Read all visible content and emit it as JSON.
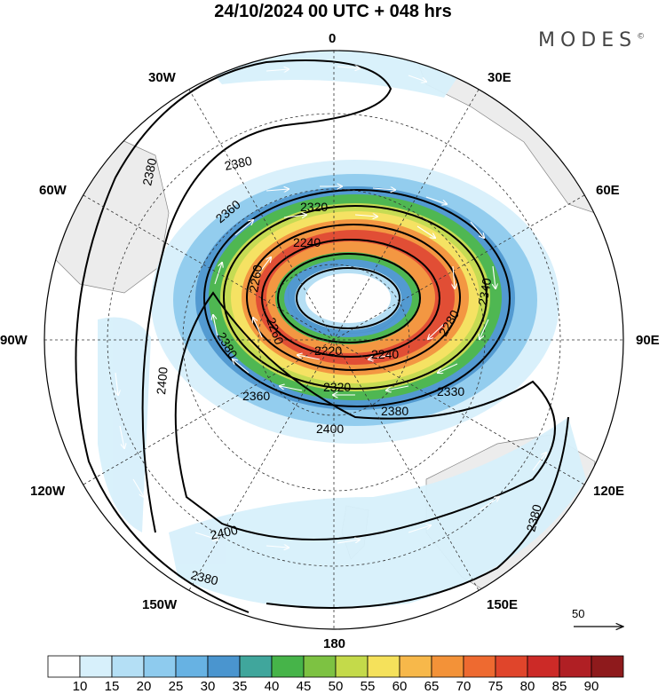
{
  "title": "24/10/2024  00 UTC  + 048 hrs",
  "logo": "MODES",
  "logo_mark": "©",
  "longitudes": {
    "n0": "0",
    "n30e": "30E",
    "n60e": "60E",
    "n90e": "90E",
    "n120e": "120E",
    "n150e": "150E",
    "n180": "180",
    "n150w": "150W",
    "n120w": "120W",
    "n90w": "90W",
    "n60w": "60W",
    "n30w": "30W"
  },
  "contour_labels": [
    "2380",
    "2360",
    "2320",
    "2240",
    "2260",
    "2220",
    "2240",
    "2280",
    "2340",
    "2260",
    "2320",
    "2330",
    "2380",
    "2400",
    "2360",
    "2380",
    "2380",
    "2400",
    "2400",
    "2380",
    "2380"
  ],
  "vector_reference": "50",
  "colorbar": {
    "colors": [
      "#ffffff",
      "#d7f0fb",
      "#b4dff5",
      "#8ecbee",
      "#67b2e3",
      "#4a95cf",
      "#40a69c",
      "#46b449",
      "#7dc242",
      "#c4da4a",
      "#f5e15b",
      "#f7b84a",
      "#f39238",
      "#ee6a30",
      "#e0452b",
      "#cc2a27",
      "#b01f24",
      "#8e1a1c"
    ],
    "labels": [
      "10",
      "15",
      "20",
      "25",
      "30",
      "35",
      "40",
      "45",
      "50",
      "55",
      "60",
      "65",
      "70",
      "75",
      "80",
      "85",
      "90"
    ]
  },
  "map_data": {
    "projection": "south polar stereographic",
    "variable": "wind speed (shaded) and geopotential height (contours) with wind vectors",
    "contours": [
      2220,
      2240,
      2260,
      2280,
      2320,
      2330,
      2340,
      2360,
      2380,
      2400
    ]
  }
}
